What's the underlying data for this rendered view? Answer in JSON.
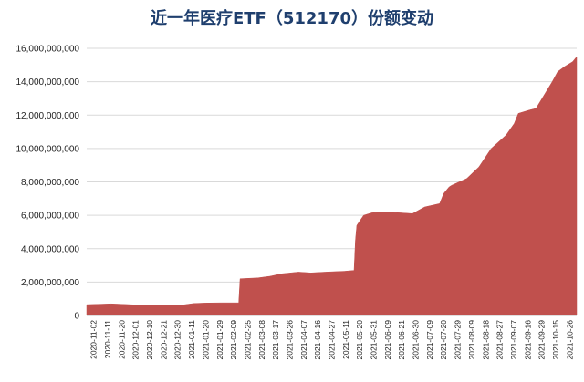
{
  "chart_data": {
    "type": "area",
    "title": "近一年医疗ETF（512170）份额变动",
    "xlabel": "",
    "ylabel": "",
    "ylim": [
      0,
      16000000000
    ],
    "yticks": [
      0,
      2000000000,
      4000000000,
      6000000000,
      8000000000,
      10000000000,
      12000000000,
      14000000000,
      16000000000
    ],
    "ytick_labels": [
      "0",
      "2,000,000,000",
      "4,000,000,000",
      "6,000,000,000",
      "8,000,000,000",
      "10,000,000,000",
      "12,000,000,000",
      "14,000,000,000",
      "16,000,000,000"
    ],
    "x_start": "2020-11-02",
    "x_end": "2021-10-29",
    "xtick_labels": [
      "2020-11-02",
      "2020-11-11",
      "2020-11-20",
      "2020-12-01",
      "2020-12-10",
      "2020-12-21",
      "2020-12-30",
      "2021-01-11",
      "2021-01-20",
      "2021-01-29",
      "2021-02-09",
      "2021-02-25",
      "2021-03-08",
      "2021-03-17",
      "2021-03-26",
      "2021-04-07",
      "2021-04-16",
      "2021-04-27",
      "2021-05-11",
      "2021-05-20",
      "2021-05-31",
      "2021-06-09",
      "2021-06-21",
      "2021-06-30",
      "2021-07-09",
      "2021-07-20",
      "2021-07-29",
      "2021-08-09",
      "2021-08-18",
      "2021-08-27",
      "2021-09-07",
      "2021-09-16",
      "2021-09-29",
      "2021-10-15",
      "2021-10-26"
    ],
    "grid": true,
    "legend": "none",
    "color": "#c0504d",
    "series": [
      {
        "x": [
          "2020-11-02",
          "2020-11-20",
          "2020-12-10",
          "2020-12-21",
          "2021-01-11",
          "2021-01-20",
          "2021-01-29",
          "2021-02-09",
          "2021-02-22",
          "2021-02-23",
          "2021-03-08",
          "2021-03-17",
          "2021-03-26",
          "2021-04-07",
          "2021-04-16",
          "2021-04-27",
          "2021-05-11",
          "2021-05-18",
          "2021-05-19",
          "2021-05-20",
          "2021-05-25",
          "2021-05-31",
          "2021-06-09",
          "2021-06-21",
          "2021-06-30",
          "2021-07-09",
          "2021-07-20",
          "2021-07-23",
          "2021-07-27",
          "2021-07-29",
          "2021-08-09",
          "2021-08-18",
          "2021-08-27",
          "2021-09-07",
          "2021-09-13",
          "2021-09-16",
          "2021-09-24",
          "2021-09-29",
          "2021-10-11",
          "2021-10-15",
          "2021-10-20",
          "2021-10-26",
          "2021-10-29"
        ],
        "values": [
          650000000,
          700000000,
          630000000,
          600000000,
          620000000,
          720000000,
          750000000,
          760000000,
          760000000,
          2200000000,
          2250000000,
          2350000000,
          2500000000,
          2600000000,
          2550000000,
          2600000000,
          2650000000,
          2700000000,
          4500000000,
          5400000000,
          6000000000,
          6150000000,
          6200000000,
          6150000000,
          6100000000,
          6500000000,
          6700000000,
          7300000000,
          7700000000,
          7800000000,
          8200000000,
          8900000000,
          10000000000,
          10800000000,
          11500000000,
          12100000000,
          12300000000,
          12400000000,
          14000000000,
          14600000000,
          14900000000,
          15200000000,
          15500000000
        ]
      }
    ]
  }
}
